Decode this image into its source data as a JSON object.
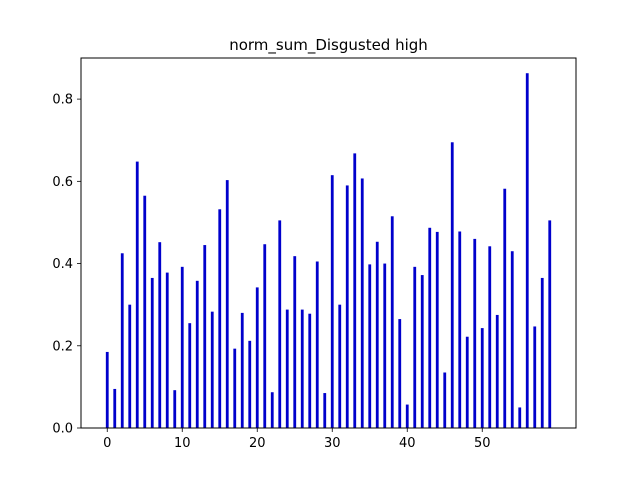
{
  "chart_data": {
    "type": "bar",
    "title": "norm_sum_Disgusted high",
    "xlabel": "",
    "ylabel": "",
    "x": [
      0,
      1,
      2,
      3,
      4,
      5,
      6,
      7,
      8,
      9,
      10,
      11,
      12,
      13,
      14,
      15,
      16,
      17,
      18,
      19,
      20,
      21,
      22,
      23,
      24,
      25,
      26,
      27,
      28,
      29,
      30,
      31,
      32,
      33,
      34,
      35,
      36,
      37,
      38,
      39,
      40,
      41,
      42,
      43,
      44,
      45,
      46,
      47,
      48,
      49,
      50,
      51,
      52,
      53,
      54,
      55,
      56,
      57,
      58,
      59
    ],
    "values": [
      0.185,
      0.095,
      0.425,
      0.3,
      0.648,
      0.565,
      0.365,
      0.452,
      0.378,
      0.092,
      0.392,
      0.255,
      0.358,
      0.445,
      0.283,
      0.532,
      0.603,
      0.193,
      0.28,
      0.212,
      0.342,
      0.447,
      0.087,
      0.505,
      0.288,
      0.418,
      0.288,
      0.278,
      0.405,
      0.085,
      0.615,
      0.3,
      0.59,
      0.668,
      0.607,
      0.398,
      0.453,
      0.4,
      0.515,
      0.265,
      0.057,
      0.392,
      0.372,
      0.487,
      0.477,
      0.135,
      0.695,
      0.478,
      0.222,
      0.46,
      0.243,
      0.442,
      0.275,
      0.582,
      0.43,
      0.05,
      0.863,
      0.247,
      0.365,
      0.505
    ],
    "xlim": [
      -3.5,
      62.5
    ],
    "ylim": [
      0,
      0.9
    ],
    "xticks": [
      "0",
      "10",
      "20",
      "30",
      "40",
      "50"
    ],
    "yticks": [
      "0.0",
      "0.2",
      "0.4",
      "0.6",
      "0.8"
    ],
    "bar_color": "#0000cc",
    "grid": false,
    "legend": "none"
  }
}
